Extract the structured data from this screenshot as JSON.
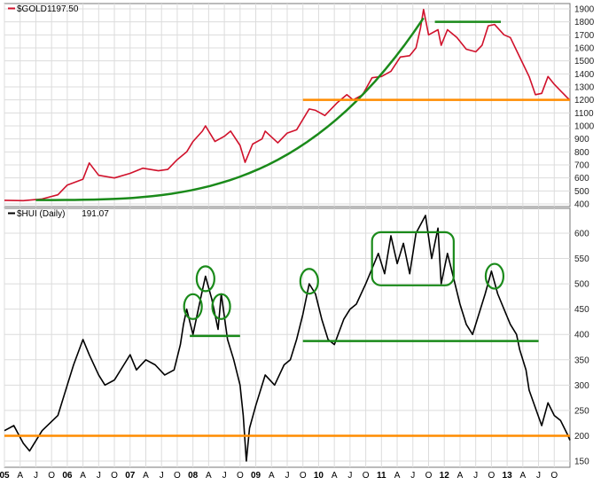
{
  "colors": {
    "gold_line": "#d0112b",
    "hui_line": "#000000",
    "trend_green": "#1a8a1a",
    "support_orange": "#ff8c00",
    "grid": "#dcdcdc",
    "frame": "#777777"
  },
  "chart_data": [
    {
      "type": "line",
      "panel": "top",
      "legend_label": "$GOLD",
      "legend_value": "1197.50",
      "y_ticks": [
        400,
        500,
        600,
        700,
        800,
        900,
        1000,
        1100,
        1200,
        1300,
        1400,
        1500,
        1600,
        1700,
        1800,
        1900
      ],
      "ylim": [
        400,
        1900
      ],
      "grid": true,
      "series": [
        {
          "name": "$GOLD",
          "color": "#d0112b",
          "points": [
            [
              2005.0,
              428
            ],
            [
              2005.3,
              425
            ],
            [
              2005.6,
              438
            ],
            [
              2005.85,
              470
            ],
            [
              2006.0,
              545
            ],
            [
              2006.25,
              590
            ],
            [
              2006.35,
              715
            ],
            [
              2006.5,
              620
            ],
            [
              2006.75,
              600
            ],
            [
              2007.0,
              635
            ],
            [
              2007.2,
              675
            ],
            [
              2007.45,
              655
            ],
            [
              2007.6,
              665
            ],
            [
              2007.75,
              740
            ],
            [
              2007.9,
              800
            ],
            [
              2008.0,
              880
            ],
            [
              2008.15,
              960
            ],
            [
              2008.2,
              1000
            ],
            [
              2008.35,
              880
            ],
            [
              2008.5,
              920
            ],
            [
              2008.6,
              960
            ],
            [
              2008.75,
              850
            ],
            [
              2008.83,
              720
            ],
            [
              2008.95,
              860
            ],
            [
              2009.1,
              900
            ],
            [
              2009.15,
              960
            ],
            [
              2009.35,
              870
            ],
            [
              2009.5,
              945
            ],
            [
              2009.65,
              970
            ],
            [
              2009.85,
              1130
            ],
            [
              2009.95,
              1120
            ],
            [
              2010.1,
              1080
            ],
            [
              2010.3,
              1180
            ],
            [
              2010.45,
              1240
            ],
            [
              2010.55,
              1200
            ],
            [
              2010.7,
              1240
            ],
            [
              2010.85,
              1370
            ],
            [
              2011.0,
              1380
            ],
            [
              2011.15,
              1420
            ],
            [
              2011.3,
              1530
            ],
            [
              2011.45,
              1540
            ],
            [
              2011.55,
              1600
            ],
            [
              2011.62,
              1750
            ],
            [
              2011.67,
              1895
            ],
            [
              2011.75,
              1700
            ],
            [
              2011.9,
              1740
            ],
            [
              2011.95,
              1620
            ],
            [
              2012.05,
              1740
            ],
            [
              2012.2,
              1680
            ],
            [
              2012.35,
              1590
            ],
            [
              2012.5,
              1570
            ],
            [
              2012.6,
              1620
            ],
            [
              2012.7,
              1770
            ],
            [
              2012.8,
              1780
            ],
            [
              2012.95,
              1700
            ],
            [
              2013.05,
              1680
            ],
            [
              2013.15,
              1580
            ],
            [
              2013.25,
              1480
            ],
            [
              2013.35,
              1380
            ],
            [
              2013.45,
              1240
            ],
            [
              2013.55,
              1250
            ],
            [
              2013.65,
              1380
            ],
            [
              2013.75,
              1320
            ],
            [
              2013.85,
              1270
            ],
            [
              2013.95,
              1220
            ],
            [
              2014.0,
              1197.5
            ]
          ]
        }
      ],
      "annotations": [
        {
          "kind": "parabolic-curve",
          "color": "green",
          "x_range": [
            2005.5,
            2011.67
          ],
          "y_range": [
            430,
            1830
          ]
        },
        {
          "kind": "horizontal-line",
          "color": "green",
          "x_range": [
            2011.85,
            2012.9
          ],
          "y": 1800
        },
        {
          "kind": "horizontal-line",
          "color": "orange",
          "x_range": [
            2009.75,
            2014.0
          ],
          "y": 1200
        }
      ]
    },
    {
      "type": "line",
      "panel": "bottom",
      "legend_label": "$HUI (Daily)",
      "legend_value": "191.07",
      "y_ticks": [
        150,
        200,
        250,
        300,
        350,
        400,
        450,
        500,
        550,
        600
      ],
      "ylim": [
        150,
        640
      ],
      "grid": true,
      "series": [
        {
          "name": "$HUI (Daily)",
          "color": "#000000",
          "points": [
            [
              2005.0,
              210
            ],
            [
              2005.15,
              220
            ],
            [
              2005.3,
              185
            ],
            [
              2005.4,
              170
            ],
            [
              2005.6,
              210
            ],
            [
              2005.85,
              240
            ],
            [
              2006.0,
              300
            ],
            [
              2006.1,
              340
            ],
            [
              2006.25,
              390
            ],
            [
              2006.35,
              360
            ],
            [
              2006.5,
              320
            ],
            [
              2006.6,
              300
            ],
            [
              2006.75,
              310
            ],
            [
              2006.9,
              340
            ],
            [
              2007.0,
              360
            ],
            [
              2007.1,
              330
            ],
            [
              2007.25,
              350
            ],
            [
              2007.4,
              340
            ],
            [
              2007.55,
              320
            ],
            [
              2007.7,
              330
            ],
            [
              2007.8,
              380
            ],
            [
              2007.85,
              420
            ],
            [
              2007.9,
              450
            ],
            [
              2008.0,
              400
            ],
            [
              2008.12,
              470
            ],
            [
              2008.2,
              515
            ],
            [
              2008.3,
              470
            ],
            [
              2008.4,
              410
            ],
            [
              2008.45,
              480
            ],
            [
              2008.55,
              390
            ],
            [
              2008.65,
              350
            ],
            [
              2008.75,
              300
            ],
            [
              2008.8,
              240
            ],
            [
              2008.85,
              150
            ],
            [
              2008.9,
              215
            ],
            [
              2009.0,
              260
            ],
            [
              2009.15,
              320
            ],
            [
              2009.3,
              300
            ],
            [
              2009.45,
              340
            ],
            [
              2009.55,
              350
            ],
            [
              2009.65,
              390
            ],
            [
              2009.75,
              440
            ],
            [
              2009.85,
              500
            ],
            [
              2009.95,
              480
            ],
            [
              2010.05,
              430
            ],
            [
              2010.15,
              390
            ],
            [
              2010.25,
              380
            ],
            [
              2010.4,
              430
            ],
            [
              2010.5,
              450
            ],
            [
              2010.6,
              460
            ],
            [
              2010.75,
              500
            ],
            [
              2010.85,
              530
            ],
            [
              2010.95,
              560
            ],
            [
              2011.05,
              520
            ],
            [
              2011.15,
              595
            ],
            [
              2011.25,
              540
            ],
            [
              2011.35,
              580
            ],
            [
              2011.45,
              520
            ],
            [
              2011.55,
              600
            ],
            [
              2011.7,
              635
            ],
            [
              2011.8,
              550
            ],
            [
              2011.9,
              610
            ],
            [
              2011.95,
              500
            ],
            [
              2012.05,
              560
            ],
            [
              2012.15,
              510
            ],
            [
              2012.25,
              460
            ],
            [
              2012.35,
              420
            ],
            [
              2012.45,
              400
            ],
            [
              2012.55,
              440
            ],
            [
              2012.65,
              480
            ],
            [
              2012.75,
              525
            ],
            [
              2012.85,
              480
            ],
            [
              2012.95,
              450
            ],
            [
              2013.05,
              420
            ],
            [
              2013.15,
              400
            ],
            [
              2013.2,
              370
            ],
            [
              2013.3,
              330
            ],
            [
              2013.35,
              290
            ],
            [
              2013.45,
              255
            ],
            [
              2013.55,
              220
            ],
            [
              2013.65,
              265
            ],
            [
              2013.75,
              240
            ],
            [
              2013.85,
              230
            ],
            [
              2013.95,
              205
            ],
            [
              2014.0,
              191.07
            ]
          ]
        }
      ],
      "annotations": [
        {
          "kind": "circle",
          "color": "green",
          "x": 2008.0,
          "y": 455
        },
        {
          "kind": "circle",
          "color": "green",
          "x": 2008.2,
          "y": 510
        },
        {
          "kind": "circle",
          "color": "green",
          "x": 2008.45,
          "y": 455
        },
        {
          "kind": "horizontal-line",
          "color": "green",
          "x_range": [
            2007.95,
            2008.75
          ],
          "y": 397
        },
        {
          "kind": "circle",
          "color": "green",
          "x": 2009.85,
          "y": 505
        },
        {
          "kind": "rounded-rectangle",
          "color": "green",
          "x_range": [
            2010.85,
            2012.15
          ],
          "y_range": [
            497,
            602
          ]
        },
        {
          "kind": "circle",
          "color": "green",
          "x": 2012.8,
          "y": 515
        },
        {
          "kind": "horizontal-line",
          "color": "green",
          "x_range": [
            2009.75,
            2013.5
          ],
          "y": 387
        },
        {
          "kind": "horizontal-line",
          "color": "orange",
          "x_range": [
            2005.0,
            2014.0
          ],
          "y": 200
        }
      ]
    }
  ],
  "x_axis": {
    "labels": [
      {
        "x": 2005.0,
        "text": "05"
      },
      {
        "x": 2005.25,
        "text": "A"
      },
      {
        "x": 2005.5,
        "text": "J"
      },
      {
        "x": 2005.75,
        "text": "O"
      },
      {
        "x": 2006.0,
        "text": "06"
      },
      {
        "x": 2006.25,
        "text": "A"
      },
      {
        "x": 2006.5,
        "text": "J"
      },
      {
        "x": 2006.75,
        "text": "O"
      },
      {
        "x": 2007.0,
        "text": "07"
      },
      {
        "x": 2007.25,
        "text": "A"
      },
      {
        "x": 2007.5,
        "text": "J"
      },
      {
        "x": 2007.75,
        "text": "O"
      },
      {
        "x": 2008.0,
        "text": "08"
      },
      {
        "x": 2008.25,
        "text": "A"
      },
      {
        "x": 2008.5,
        "text": "J"
      },
      {
        "x": 2008.75,
        "text": "O"
      },
      {
        "x": 2009.0,
        "text": "09"
      },
      {
        "x": 2009.25,
        "text": "A"
      },
      {
        "x": 2009.5,
        "text": "J"
      },
      {
        "x": 2009.75,
        "text": "O"
      },
      {
        "x": 2010.0,
        "text": "10"
      },
      {
        "x": 2010.25,
        "text": "A"
      },
      {
        "x": 2010.5,
        "text": "J"
      },
      {
        "x": 2010.75,
        "text": "O"
      },
      {
        "x": 2011.0,
        "text": "11"
      },
      {
        "x": 2011.25,
        "text": "A"
      },
      {
        "x": 2011.5,
        "text": "J"
      },
      {
        "x": 2011.75,
        "text": "O"
      },
      {
        "x": 2012.0,
        "text": "12"
      },
      {
        "x": 2012.25,
        "text": "A"
      },
      {
        "x": 2012.5,
        "text": "J"
      },
      {
        "x": 2012.75,
        "text": "O"
      },
      {
        "x": 2013.0,
        "text": "13"
      },
      {
        "x": 2013.25,
        "text": "A"
      },
      {
        "x": 2013.5,
        "text": "J"
      },
      {
        "x": 2013.75,
        "text": "O"
      }
    ],
    "range": [
      2005.0,
      2014.0
    ]
  }
}
